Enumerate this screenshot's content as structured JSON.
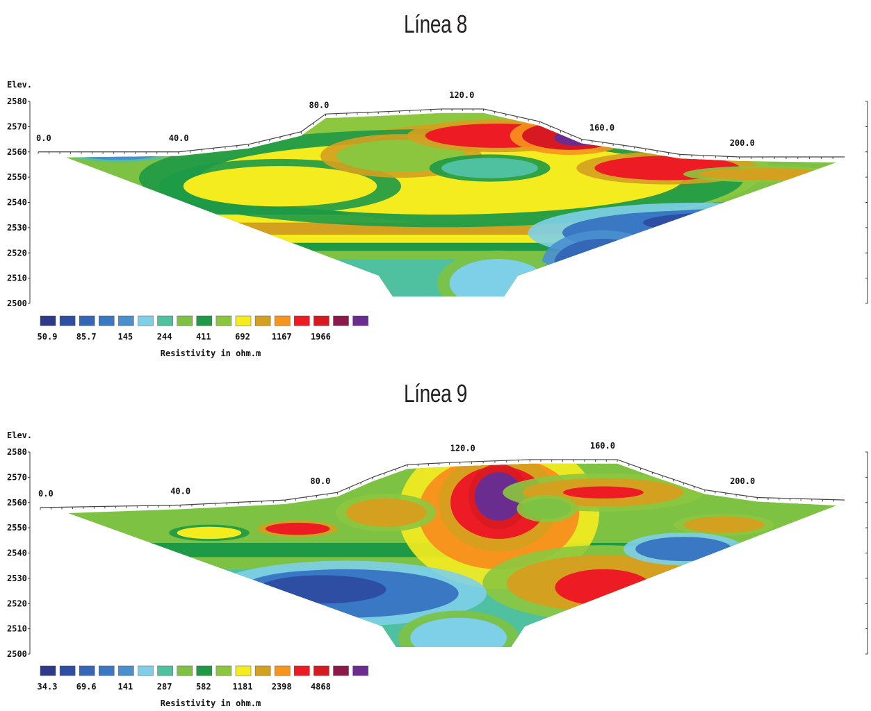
{
  "chart_data": [
    {
      "type": "heatmap",
      "title": "Línea 8",
      "ylabel": "Elev.",
      "x_ticks": [
        "0.0",
        "40.0",
        "80.0",
        "120.0",
        "160.0",
        "200.0"
      ],
      "x_tick_values": [
        0,
        40,
        80,
        120,
        160,
        200
      ],
      "y_ticks": [
        "2580",
        "2570",
        "2560",
        "2550",
        "2540",
        "2530",
        "2520",
        "2510",
        "2500"
      ],
      "ylim": [
        2500,
        2580
      ],
      "xlim": [
        0,
        230
      ],
      "surface": [
        [
          0,
          2560
        ],
        [
          40,
          2560
        ],
        [
          60,
          2563
        ],
        [
          75,
          2568
        ],
        [
          82,
          2575
        ],
        [
          100,
          2576
        ],
        [
          115,
          2577
        ],
        [
          127,
          2577
        ],
        [
          143,
          2572
        ],
        [
          155,
          2565
        ],
        [
          170,
          2562
        ],
        [
          183,
          2559
        ],
        [
          200,
          2558
        ],
        [
          230,
          2558
        ]
      ],
      "legend_colors": [
        "#2e3a87",
        "#2d4ea3",
        "#3567b8",
        "#3a78c4",
        "#4a90d0",
        "#7ecfe8",
        "#4fc0a0",
        "#7dc242",
        "#1e9a46",
        "#8cc63f",
        "#f5ec1f",
        "#d4a020",
        "#f7941d",
        "#ed1c24",
        "#d71921",
        "#8b1a4a",
        "#6a2d8f"
      ],
      "legend_labels": [
        "50.9",
        "85.7",
        "145",
        "244",
        "411",
        "692",
        "1167",
        "1966"
      ],
      "legend_title": "Resistivity in ohm.m"
    },
    {
      "type": "heatmap",
      "title": "Línea 9",
      "ylabel": "Elev.",
      "x_ticks": [
        "0.0",
        "40.0",
        "80.0",
        "120.0",
        "160.0",
        "200.0"
      ],
      "x_tick_values": [
        0,
        40,
        80,
        120,
        160,
        200
      ],
      "y_ticks": [
        "2580",
        "2570",
        "2560",
        "2550",
        "2540",
        "2530",
        "2520",
        "2510",
        "2500"
      ],
      "ylim": [
        2500,
        2580
      ],
      "xlim": [
        0,
        230
      ],
      "surface": [
        [
          0,
          2558
        ],
        [
          40,
          2559
        ],
        [
          70,
          2561
        ],
        [
          85,
          2564
        ],
        [
          95,
          2570
        ],
        [
          105,
          2575
        ],
        [
          120,
          2576
        ],
        [
          140,
          2577
        ],
        [
          165,
          2577
        ],
        [
          175,
          2572
        ],
        [
          190,
          2565
        ],
        [
          205,
          2562
        ],
        [
          230,
          2561
        ]
      ],
      "legend_colors": [
        "#2e3a87",
        "#2d4ea3",
        "#3567b8",
        "#3a78c4",
        "#4a90d0",
        "#7ecfe8",
        "#4fc0a0",
        "#7dc242",
        "#1e9a46",
        "#8cc63f",
        "#f5ec1f",
        "#d4a020",
        "#f7941d",
        "#ed1c24",
        "#d71921",
        "#8b1a4a",
        "#6a2d8f"
      ],
      "legend_labels": [
        "34.3",
        "69.6",
        "141",
        "287",
        "582",
        "1181",
        "2398",
        "4868"
      ],
      "legend_title": "Resistivity in ohm.m"
    }
  ]
}
